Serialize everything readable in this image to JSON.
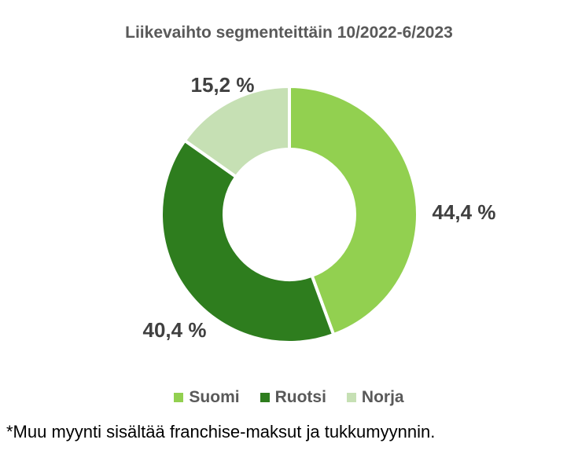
{
  "chart_data": {
    "type": "pie",
    "title": "Liikevaihto segmenteittäin 10/2022-6/2023",
    "categories": [
      "Suomi",
      "Ruotsi",
      "Norja"
    ],
    "values": [
      44.4,
      40.4,
      15.2
    ],
    "value_labels": [
      "44,4 %",
      "40,4 %",
      "15,2 %"
    ],
    "colors": [
      "#92D050",
      "#2E7D1E",
      "#C6E0B4"
    ],
    "legend_position": "bottom"
  },
  "footnote": "*Muu myynti sisältää franchise-maksut ja tukkumyynnin."
}
